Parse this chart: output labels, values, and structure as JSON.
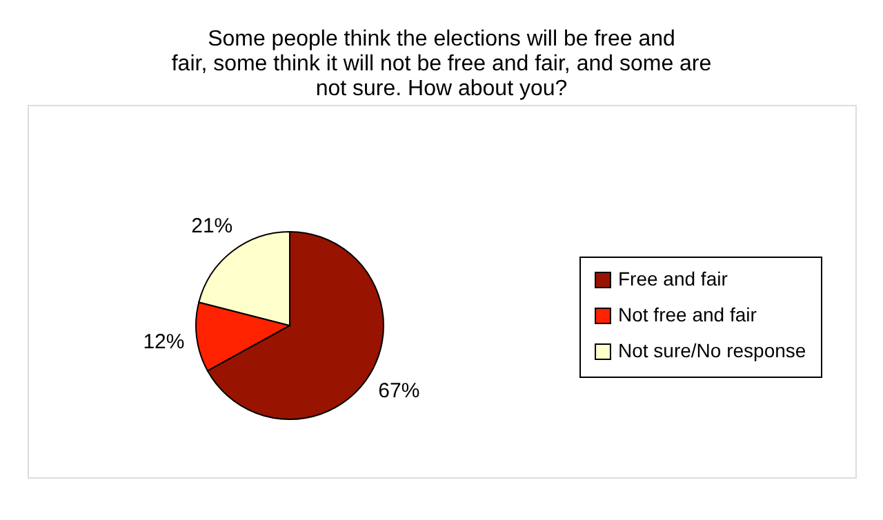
{
  "chart_data": {
    "type": "pie",
    "title": [
      "Some people think the elections will be free and",
      "fair, some think it will not be free and fair, and some are",
      "not sure. How about you?"
    ],
    "categories": [
      "Free and fair",
      "Not free and fair",
      "Not sure/No response"
    ],
    "values": [
      67,
      12,
      21
    ],
    "colors": [
      "#991400",
      "#ff2200",
      "#ffffcc"
    ],
    "value_labels": [
      "67%",
      "12%",
      "21%"
    ],
    "legend": "right"
  }
}
